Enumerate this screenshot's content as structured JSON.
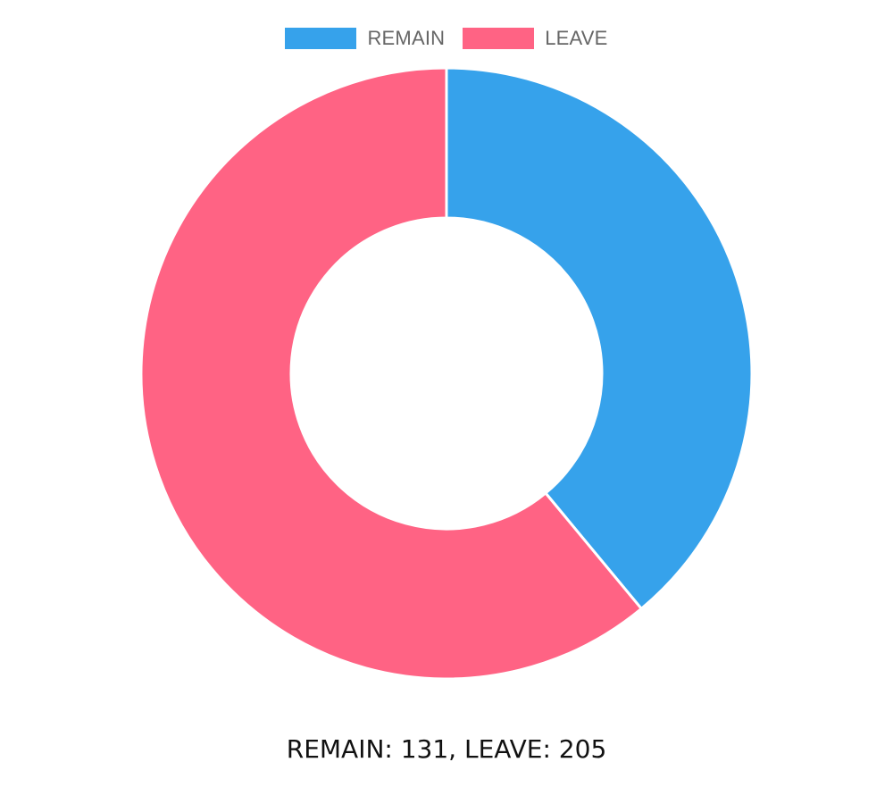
{
  "chart_data": {
    "type": "pie",
    "variant": "doughnut",
    "categories": [
      "REMAIN",
      "LEAVE"
    ],
    "values": [
      131,
      205
    ],
    "colors": [
      "#36a2eb",
      "#ff6384"
    ],
    "legend_position": "top"
  },
  "legend": {
    "items": [
      {
        "label": "REMAIN",
        "color": "#36a2eb"
      },
      {
        "label": "LEAVE",
        "color": "#ff6384"
      }
    ]
  },
  "summary": {
    "text": "REMAIN: 131, LEAVE: 205"
  }
}
